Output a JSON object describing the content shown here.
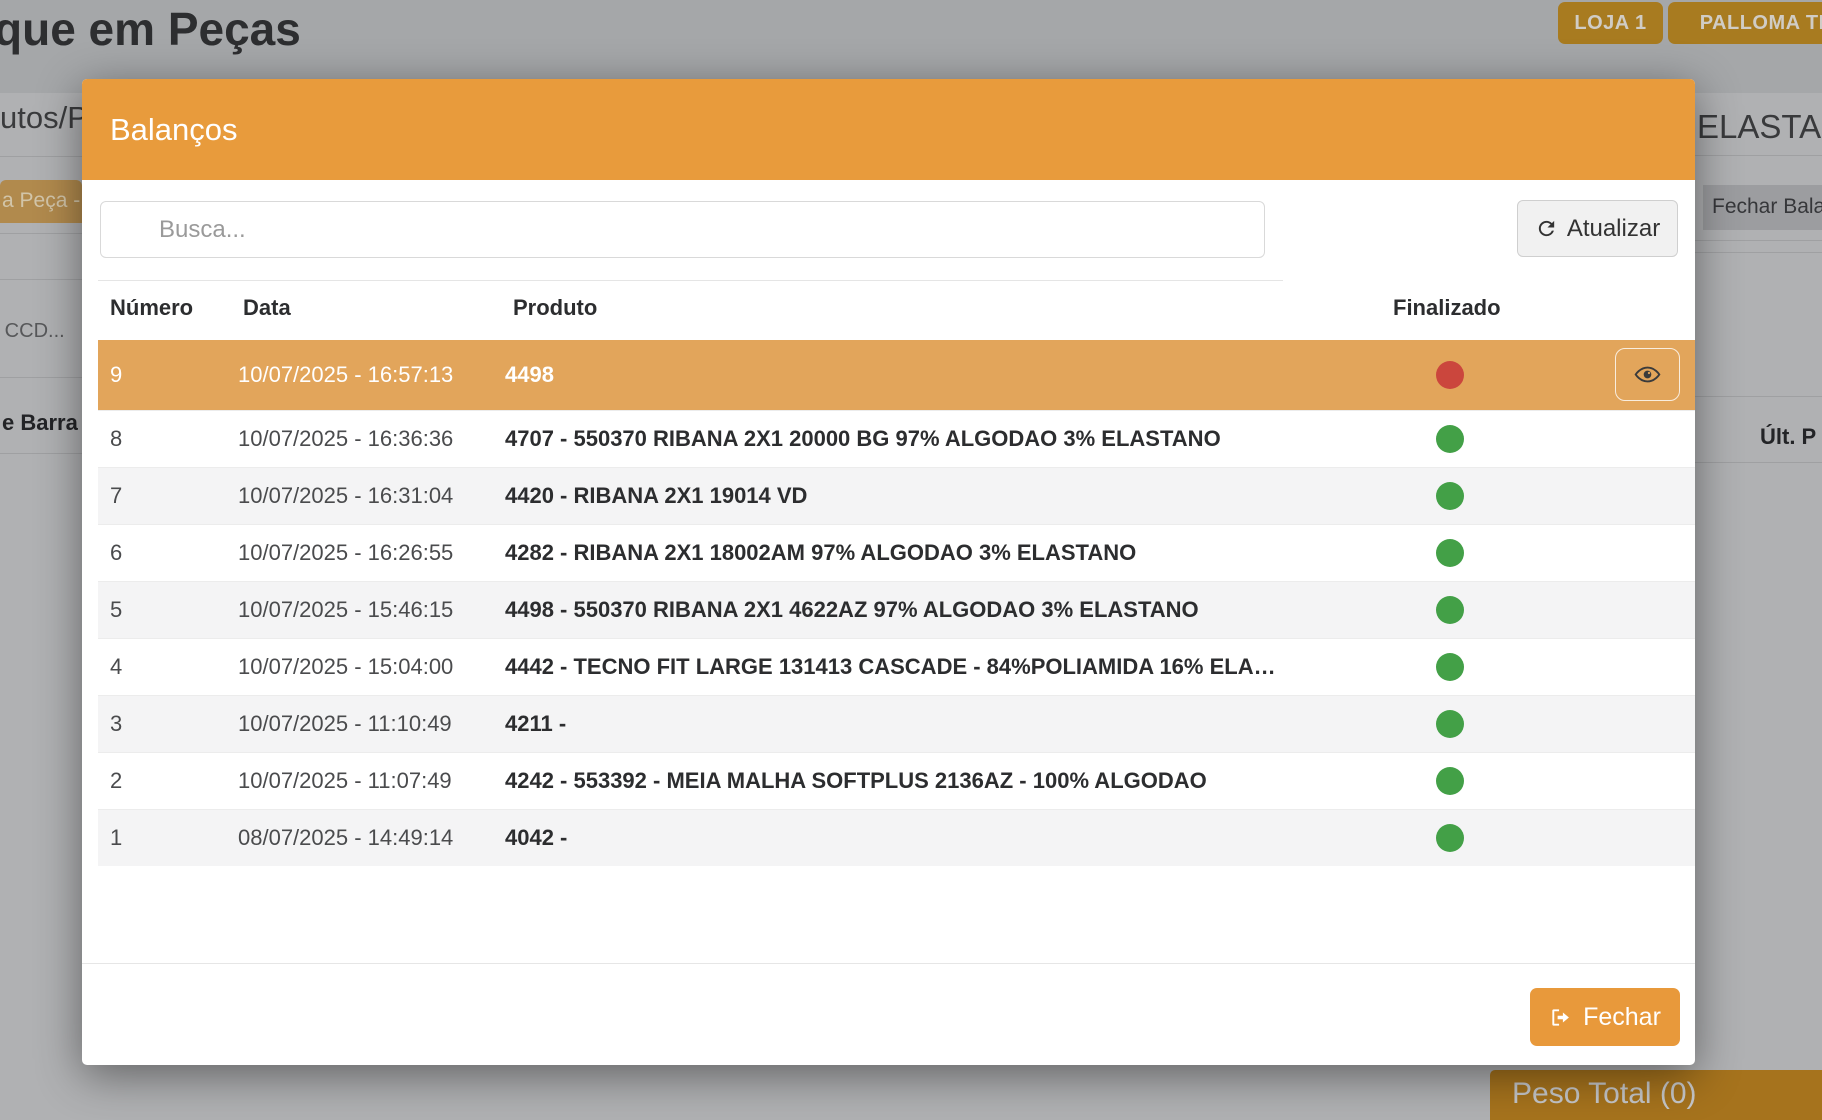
{
  "backdrop": {
    "page_title_fragment": "que em Peças",
    "products_tab_fragment": "utos/Pe",
    "store_button_1": "LOJA 1",
    "store_button_2": "PALLOMA TEX",
    "product_title_fragment": "ELASTAN",
    "close_balance_fragment": "Fechar Balan",
    "left_tab_fragment": "a Peça - F",
    "ccd_fragment": "o CCD...",
    "barcode_header_fragment": "e Barra",
    "last_weight_header_fragment": "Últ. P",
    "peso_total_label": "Peso Total (0)"
  },
  "modal": {
    "title": "Balanços",
    "search_placeholder": "Busca...",
    "refresh_label": "Atualizar",
    "close_label": "Fechar",
    "table": {
      "headers": [
        "Número",
        "Data",
        "Produto",
        "Finalizado"
      ],
      "rows": [
        {
          "numero": "9",
          "data": "10/07/2025 - 16:57:13",
          "produto": "4498",
          "finalizado": false,
          "selected": true
        },
        {
          "numero": "8",
          "data": "10/07/2025 - 16:36:36",
          "produto": "4707 - 550370 RIBANA 2X1 20000 BG 97% ALGODAO 3% ELASTANO",
          "finalizado": true,
          "selected": false
        },
        {
          "numero": "7",
          "data": "10/07/2025 - 16:31:04",
          "produto": "4420 - RIBANA 2X1 19014 VD",
          "finalizado": true,
          "selected": false
        },
        {
          "numero": "6",
          "data": "10/07/2025 - 16:26:55",
          "produto": "4282 - RIBANA 2X1 18002AM 97% ALGODAO 3% ELASTANO",
          "finalizado": true,
          "selected": false
        },
        {
          "numero": "5",
          "data": "10/07/2025 - 15:46:15",
          "produto": "4498 - 550370 RIBANA 2X1 4622AZ 97% ALGODAO 3% ELASTANO",
          "finalizado": true,
          "selected": false
        },
        {
          "numero": "4",
          "data": "10/07/2025 - 15:04:00",
          "produto": "4442 - TECNO FIT LARGE 131413 CASCADE - 84%POLIAMIDA 16% ELA…",
          "finalizado": true,
          "selected": false
        },
        {
          "numero": "3",
          "data": "10/07/2025 - 11:10:49",
          "produto": "4211 -",
          "finalizado": true,
          "selected": false
        },
        {
          "numero": "2",
          "data": "10/07/2025 - 11:07:49",
          "produto": "4242 - 553392 - MEIA MALHA SOFTPLUS 2136AZ - 100% ALGODAO",
          "finalizado": true,
          "selected": false
        },
        {
          "numero": "1",
          "data": "08/07/2025 - 14:49:14",
          "produto": "4042 -",
          "finalizado": true,
          "selected": false
        }
      ]
    }
  },
  "colors": {
    "modal_header_orange": "#e89b3c",
    "selected_row_orange": "#e2a55b",
    "close_button_orange": "#e8993b",
    "status_green": "#43a047",
    "status_red": "#cb463d",
    "store_button_brown": "#a87b20",
    "peso_panel_brown": "#a6731d"
  }
}
